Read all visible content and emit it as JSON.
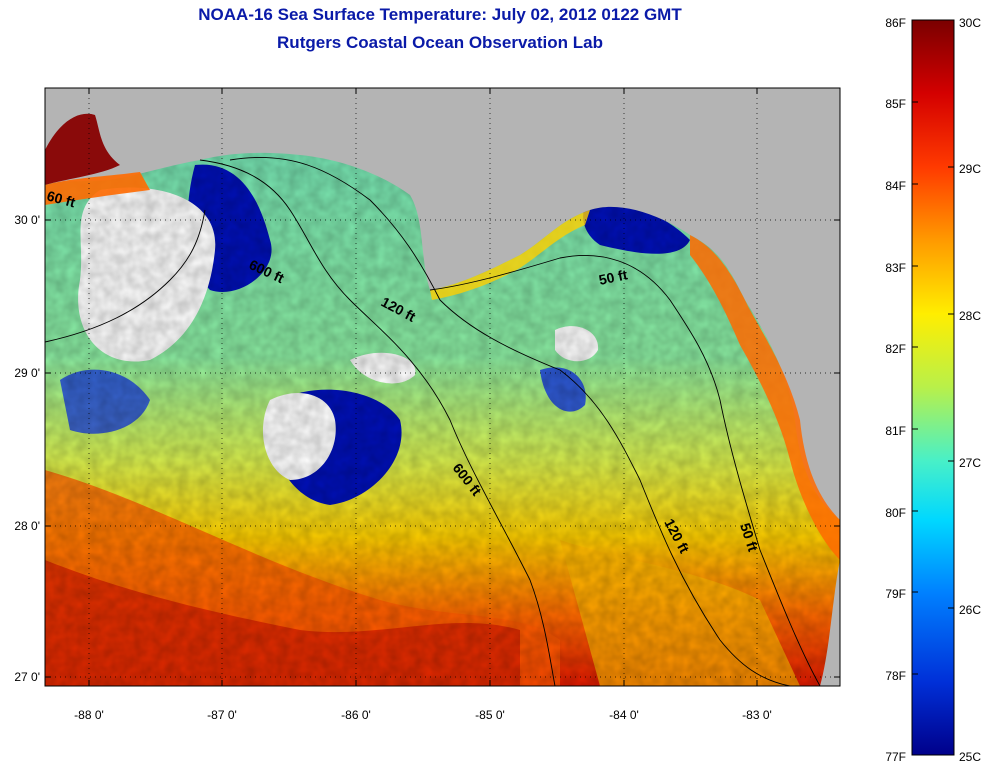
{
  "title": "NOAA-16 Sea Surface Temperature:  July 02, 2012 0122 GMT",
  "subtitle": "Rutgers Coastal Ocean Observation Lab",
  "axes": {
    "x_ticks": [
      "-88 0'",
      "-87 0'",
      "-86 0'",
      "-85 0'",
      "-84 0'",
      "-83 0'"
    ],
    "y_ticks": [
      "30 0'",
      "29 0'",
      "28 0'",
      "27 0'"
    ],
    "grid": "dotted"
  },
  "contours": {
    "labels": [
      "60 ft",
      "600 ft",
      "120 ft",
      "50 ft",
      "600 ft",
      "120 ft",
      "50 ft"
    ]
  },
  "colorbar": {
    "fahrenheit_labels": [
      "86F",
      "85F",
      "84F",
      "83F",
      "82F",
      "81F",
      "80F",
      "79F",
      "78F",
      "77F"
    ],
    "celsius_labels": [
      "30C",
      "29C",
      "28C",
      "27C",
      "26C",
      "25C"
    ],
    "colors": [
      "#7a0000",
      "#d40000",
      "#ff3a00",
      "#ff9a00",
      "#ffee00",
      "#b8f04a",
      "#48f0c8",
      "#00d8ff",
      "#0080ff",
      "#0030d8",
      "#00008a"
    ]
  },
  "colors": {
    "land": "#b4b4b4",
    "cloud": "#ffffff",
    "title": "#0a1aa8"
  }
}
